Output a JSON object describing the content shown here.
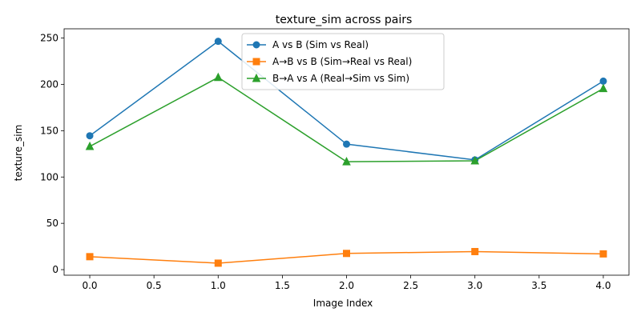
{
  "chart_data": {
    "type": "line",
    "title": "texture_sim across pairs",
    "xlabel": "Image Index",
    "ylabel": "texture_sim",
    "x": [
      0,
      1,
      2,
      3,
      4
    ],
    "xlim": [
      -0.2,
      4.2
    ],
    "ylim": [
      -6,
      260
    ],
    "xticks": [
      0.0,
      0.5,
      1.0,
      1.5,
      2.0,
      2.5,
      3.0,
      3.5,
      4.0
    ],
    "xtick_labels": [
      "0.0",
      "0.5",
      "1.0",
      "1.5",
      "2.0",
      "2.5",
      "3.0",
      "3.5",
      "4.0"
    ],
    "yticks": [
      0,
      50,
      100,
      150,
      200,
      250
    ],
    "ytick_labels": [
      "0",
      "50",
      "100",
      "150",
      "200",
      "250"
    ],
    "grid": false,
    "legend_position": "top-center",
    "series": [
      {
        "name": "A vs B (Sim vs Real)",
        "color": "#1f77b4",
        "marker": "circle",
        "values": [
          144.5,
          246.5,
          135.5,
          118.5,
          203.5
        ]
      },
      {
        "name": "A→B vs B (Sim→Real vs Real)",
        "color": "#ff7f0e",
        "marker": "square",
        "values": [
          14.0,
          7.0,
          17.5,
          19.5,
          17.0
        ]
      },
      {
        "name": "B→A vs A (Real→Sim vs Sim)",
        "color": "#2ca02c",
        "marker": "triangle",
        "values": [
          133.0,
          207.5,
          116.5,
          117.5,
          195.5
        ]
      }
    ]
  }
}
